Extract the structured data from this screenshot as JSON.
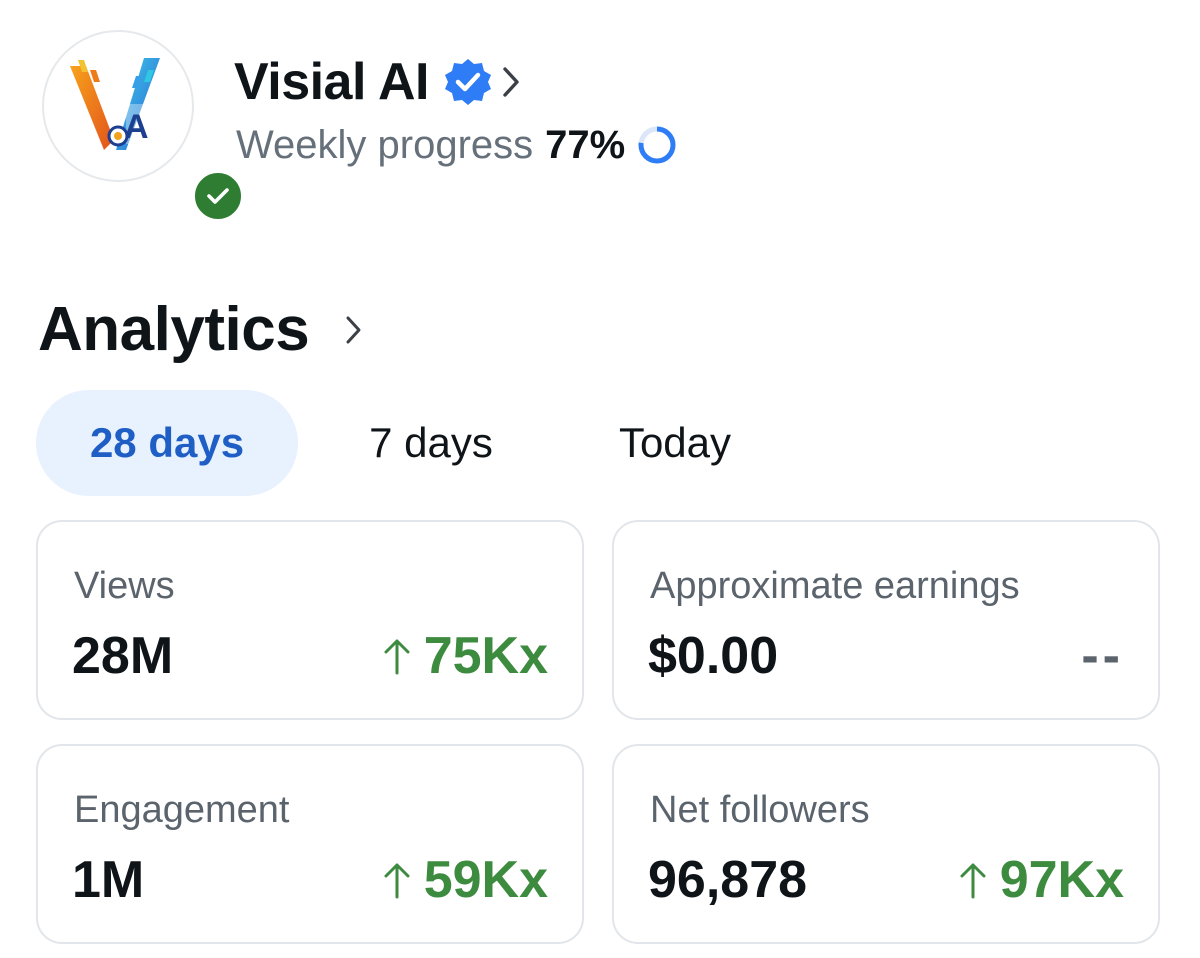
{
  "profile": {
    "name": "Visial AI",
    "progress_label": "Weekly progress",
    "progress_value": "77%",
    "progress_fraction": 0.77
  },
  "analytics": {
    "title": "Analytics",
    "tabs": [
      {
        "label": "28 days",
        "active": true
      },
      {
        "label": "7 days",
        "active": false
      },
      {
        "label": "Today",
        "active": false
      }
    ],
    "cards": [
      {
        "label": "Views",
        "value": "28M",
        "change": "75Kx",
        "trend": "up"
      },
      {
        "label": "Approximate earnings",
        "value": "$0.00",
        "change": "--",
        "trend": "none"
      },
      {
        "label": "Engagement",
        "value": "1M",
        "change": "59Kx",
        "trend": "up"
      },
      {
        "label": "Net followers",
        "value": "96,878",
        "change": "97Kx",
        "trend": "up"
      }
    ]
  },
  "icons": {
    "verified": "verified-check-icon",
    "chevron": "chevron-right-icon",
    "arrow": "arrow-up-icon",
    "status": "checkmark-icon"
  },
  "colors": {
    "accent_blue": "#1f5fc5",
    "verified_blue": "#2f7df6",
    "tab_active_bg": "#e8f1fe",
    "positive_green": "#3d8b3f",
    "status_green": "#2f7d32"
  }
}
